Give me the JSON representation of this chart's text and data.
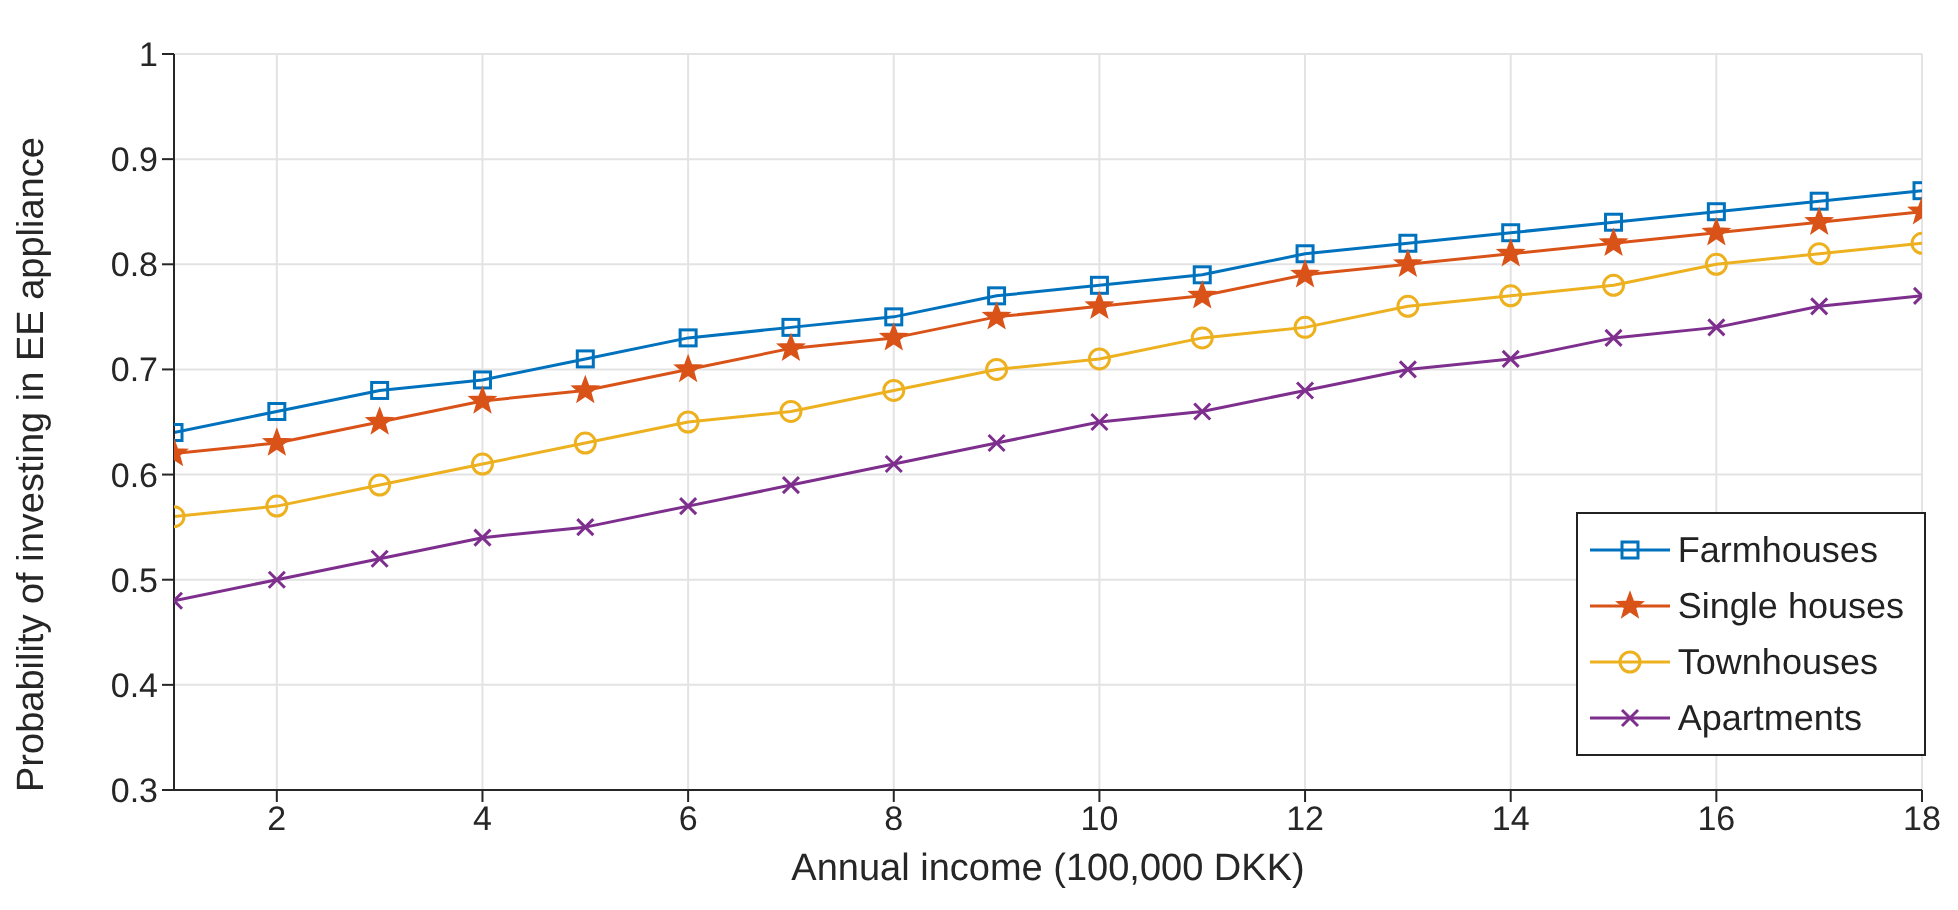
{
  "chart_data": {
    "type": "line",
    "xlabel": "Annual income (100,000 DKK)",
    "ylabel": "Probability of investing in EE appliance",
    "x": [
      1,
      2,
      3,
      4,
      5,
      6,
      7,
      8,
      9,
      10,
      11,
      12,
      13,
      14,
      15,
      16,
      17,
      18
    ],
    "series": [
      {
        "name": "Farmhouses",
        "color": "#0072bd",
        "marker": "square",
        "values": [
          0.64,
          0.66,
          0.68,
          0.69,
          0.71,
          0.73,
          0.74,
          0.75,
          0.77,
          0.78,
          0.79,
          0.81,
          0.82,
          0.83,
          0.84,
          0.85,
          0.86,
          0.87
        ]
      },
      {
        "name": "Single houses",
        "color": "#d95319",
        "marker": "star",
        "values": [
          0.62,
          0.63,
          0.65,
          0.67,
          0.68,
          0.7,
          0.72,
          0.73,
          0.75,
          0.76,
          0.77,
          0.79,
          0.8,
          0.81,
          0.82,
          0.83,
          0.84,
          0.85
        ]
      },
      {
        "name": "Townhouses",
        "color": "#edb120",
        "marker": "circle",
        "values": [
          0.56,
          0.57,
          0.59,
          0.61,
          0.63,
          0.65,
          0.66,
          0.68,
          0.7,
          0.71,
          0.73,
          0.74,
          0.76,
          0.77,
          0.78,
          0.8,
          0.81,
          0.82
        ]
      },
      {
        "name": "Apartments",
        "color": "#7e2f8e",
        "marker": "cross",
        "values": [
          0.48,
          0.5,
          0.52,
          0.54,
          0.55,
          0.57,
          0.59,
          0.61,
          0.63,
          0.65,
          0.66,
          0.68,
          0.7,
          0.71,
          0.73,
          0.74,
          0.76,
          0.77
        ]
      }
    ],
    "xlim": [
      1,
      18
    ],
    "xticks": [
      2,
      4,
      6,
      8,
      10,
      12,
      14,
      16,
      18
    ],
    "ylim": [
      0.3,
      1
    ],
    "yticks": [
      0.3,
      0.4,
      0.5,
      0.6,
      0.7,
      0.8,
      0.9,
      1
    ],
    "grid": true,
    "legend": "bottom right",
    "line_style": "solid"
  }
}
